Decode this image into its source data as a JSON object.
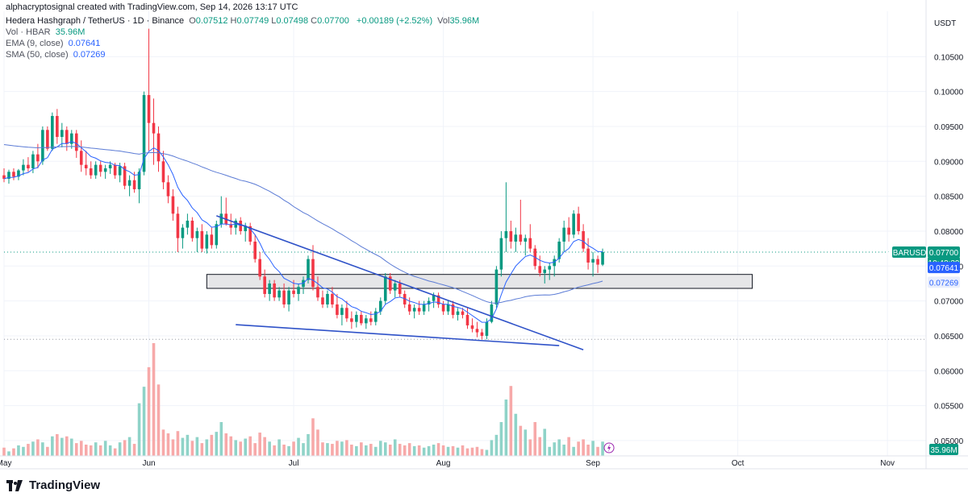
{
  "header": {
    "caption": "alphacryptosignal created with TradingView.com, Sep 14, 2026 13:17 UTC",
    "symbol_line": "Hedera Hashgraph / TetherUS · 1D · Binance",
    "ohlc": [
      {
        "k": "O",
        "v": "0.07512"
      },
      {
        "k": "H",
        "v": "0.07749"
      },
      {
        "k": "L",
        "v": "0.07498"
      },
      {
        "k": "C",
        "v": "0.07700"
      }
    ],
    "change": "+0.00189 (+2.52%)",
    "vol_label": "Vol",
    "vol_value": "35.96M",
    "vol_line_label": "Vol · HBAR",
    "vol_line_value": "35.96M",
    "ema_label": "EMA (9, close)",
    "ema_value": "0.07641",
    "sma_label": "SMA (50, close)",
    "sma_value": "0.07269"
  },
  "brand": "TradingView",
  "colors": {
    "up": "#089981",
    "down": "#f23645",
    "vol_up": "#8fd3c8",
    "vol_down": "#f7a9a9",
    "ema": "#2962ff",
    "sma": "#5b7bd5",
    "trendline": "#2f52c8",
    "grid": "#f0f3fa"
  },
  "chart_data": {
    "type": "candlestick",
    "currency": "USDT",
    "symbol_tag": "HBARUSDT",
    "last_price": "0.07700",
    "countdown": "10:42:39",
    "ema_tag": "0.07641",
    "sma_tag": "0.07269",
    "volume_tag": "35.96M",
    "y_ticks": [
      "0.10500",
      "0.10000",
      "0.09500",
      "0.09000",
      "0.08500",
      "0.08000",
      "0.07500",
      "0.07000",
      "0.06500",
      "0.06000",
      "0.05500",
      "0.05000"
    ],
    "ylim": [
      0.0478,
      0.1115
    ],
    "x_ticks": [
      {
        "label": "May",
        "t": 0
      },
      {
        "label": "Jun",
        "t": 30
      },
      {
        "label": "Jul",
        "t": 60
      },
      {
        "label": "Aug",
        "t": 91
      },
      {
        "label": "Sep",
        "t": 122
      },
      {
        "label": "Oct",
        "t": 152
      },
      {
        "label": "Nov",
        "t": 183
      }
    ],
    "x_range": [
      0,
      191
    ],
    "candles": [
      [
        0.088,
        0.089,
        0.087,
        0.0875
      ],
      [
        0.0875,
        0.0888,
        0.0868,
        0.0885
      ],
      [
        0.0885,
        0.089,
        0.0873,
        0.0878
      ],
      [
        0.0878,
        0.0889,
        0.0873,
        0.0887
      ],
      [
        0.0887,
        0.0903,
        0.088,
        0.0895
      ],
      [
        0.0895,
        0.0906,
        0.0885,
        0.089
      ],
      [
        0.089,
        0.0915,
        0.0883,
        0.091
      ],
      [
        0.091,
        0.0925,
        0.089,
        0.09
      ],
      [
        0.09,
        0.095,
        0.0895,
        0.0945
      ],
      [
        0.0945,
        0.095,
        0.0915,
        0.0918
      ],
      [
        0.0918,
        0.097,
        0.0915,
        0.0965
      ],
      [
        0.0965,
        0.0975,
        0.0925,
        0.0935
      ],
      [
        0.0935,
        0.0955,
        0.092,
        0.0945
      ],
      [
        0.0945,
        0.095,
        0.0915,
        0.0925
      ],
      [
        0.0925,
        0.0945,
        0.0918,
        0.094
      ],
      [
        0.094,
        0.0945,
        0.0905,
        0.0915
      ],
      [
        0.0915,
        0.093,
        0.0885,
        0.0895
      ],
      [
        0.0895,
        0.0915,
        0.088,
        0.089
      ],
      [
        0.089,
        0.09,
        0.0875,
        0.088
      ],
      [
        0.088,
        0.09,
        0.0875,
        0.0895
      ],
      [
        0.0895,
        0.09,
        0.0878,
        0.0885
      ],
      [
        0.0885,
        0.0895,
        0.0875,
        0.089
      ],
      [
        0.089,
        0.09,
        0.0882,
        0.0895
      ],
      [
        0.0895,
        0.0898,
        0.0875,
        0.088
      ],
      [
        0.088,
        0.0898,
        0.087,
        0.0893
      ],
      [
        0.0893,
        0.0898,
        0.086,
        0.0865
      ],
      [
        0.0865,
        0.088,
        0.085,
        0.0873
      ],
      [
        0.0873,
        0.0885,
        0.0855,
        0.086
      ],
      [
        0.086,
        0.089,
        0.084,
        0.0885
      ],
      [
        0.0885,
        0.1,
        0.088,
        0.0995
      ],
      [
        0.0995,
        0.109,
        0.0915,
        0.0955
      ],
      [
        0.0955,
        0.099,
        0.0895,
        0.094
      ],
      [
        0.094,
        0.095,
        0.0885,
        0.09
      ],
      [
        0.09,
        0.0915,
        0.086,
        0.087
      ],
      [
        0.087,
        0.088,
        0.084,
        0.085
      ],
      [
        0.085,
        0.086,
        0.0815,
        0.0825
      ],
      [
        0.0825,
        0.0835,
        0.077,
        0.079
      ],
      [
        0.079,
        0.081,
        0.0775,
        0.0805
      ],
      [
        0.0805,
        0.0825,
        0.0795,
        0.0815
      ],
      [
        0.0815,
        0.082,
        0.0785,
        0.079
      ],
      [
        0.079,
        0.0805,
        0.077,
        0.08
      ],
      [
        0.08,
        0.081,
        0.077,
        0.0775
      ],
      [
        0.0775,
        0.08,
        0.0768,
        0.0795
      ],
      [
        0.0795,
        0.0805,
        0.0775,
        0.078
      ],
      [
        0.078,
        0.0815,
        0.0775,
        0.081
      ],
      [
        0.081,
        0.085,
        0.0805,
        0.0825
      ],
      [
        0.0825,
        0.0848,
        0.0808,
        0.081
      ],
      [
        0.081,
        0.0825,
        0.0795,
        0.0805
      ],
      [
        0.0805,
        0.0818,
        0.0795,
        0.0815
      ],
      [
        0.0815,
        0.082,
        0.0795,
        0.08
      ],
      [
        0.08,
        0.0812,
        0.0785,
        0.0807
      ],
      [
        0.0807,
        0.0812,
        0.078,
        0.0785
      ],
      [
        0.0785,
        0.0795,
        0.0755,
        0.076
      ],
      [
        0.076,
        0.077,
        0.073,
        0.0735
      ],
      [
        0.0735,
        0.0745,
        0.0705,
        0.071
      ],
      [
        0.071,
        0.073,
        0.07,
        0.0725
      ],
      [
        0.0725,
        0.073,
        0.07,
        0.0705
      ],
      [
        0.0705,
        0.072,
        0.07,
        0.0715
      ],
      [
        0.0715,
        0.0725,
        0.069,
        0.0695
      ],
      [
        0.0695,
        0.072,
        0.0685,
        0.0715
      ],
      [
        0.0715,
        0.073,
        0.0705,
        0.071
      ],
      [
        0.071,
        0.0725,
        0.07,
        0.072
      ],
      [
        0.072,
        0.0735,
        0.071,
        0.073
      ],
      [
        0.073,
        0.0765,
        0.0725,
        0.076
      ],
      [
        0.076,
        0.078,
        0.0715,
        0.072
      ],
      [
        0.072,
        0.0735,
        0.07,
        0.0705
      ],
      [
        0.0705,
        0.0715,
        0.069,
        0.0695
      ],
      [
        0.0695,
        0.0715,
        0.069,
        0.071
      ],
      [
        0.071,
        0.072,
        0.069,
        0.0695
      ],
      [
        0.0695,
        0.071,
        0.0675,
        0.068
      ],
      [
        0.068,
        0.0695,
        0.0665,
        0.069
      ],
      [
        0.069,
        0.07,
        0.067,
        0.0675
      ],
      [
        0.0675,
        0.0685,
        0.066,
        0.067
      ],
      [
        0.067,
        0.0685,
        0.0662,
        0.068
      ],
      [
        0.068,
        0.0685,
        0.0665,
        0.0668
      ],
      [
        0.0668,
        0.068,
        0.066,
        0.0675
      ],
      [
        0.0675,
        0.0685,
        0.0665,
        0.067
      ],
      [
        0.067,
        0.069,
        0.0665,
        0.0685
      ],
      [
        0.0685,
        0.0705,
        0.068,
        0.07
      ],
      [
        0.07,
        0.074,
        0.0695,
        0.0735
      ],
      [
        0.0735,
        0.074,
        0.071,
        0.0715
      ],
      [
        0.0715,
        0.073,
        0.0705,
        0.0725
      ],
      [
        0.0725,
        0.073,
        0.0705,
        0.071
      ],
      [
        0.071,
        0.0715,
        0.069,
        0.0695
      ],
      [
        0.0695,
        0.0705,
        0.068,
        0.0685
      ],
      [
        0.0685,
        0.0695,
        0.0675,
        0.069
      ],
      [
        0.069,
        0.07,
        0.068,
        0.0685
      ],
      [
        0.0685,
        0.07,
        0.068,
        0.0695
      ],
      [
        0.0695,
        0.0705,
        0.0685,
        0.07
      ],
      [
        0.07,
        0.0712,
        0.069,
        0.0708
      ],
      [
        0.0708,
        0.0712,
        0.069,
        0.0695
      ],
      [
        0.0695,
        0.07,
        0.068,
        0.0685
      ],
      [
        0.0685,
        0.07,
        0.068,
        0.0695
      ],
      [
        0.0695,
        0.07,
        0.0675,
        0.068
      ],
      [
        0.068,
        0.069,
        0.0672,
        0.0685
      ],
      [
        0.0685,
        0.069,
        0.0675,
        0.068
      ],
      [
        0.068,
        0.069,
        0.066,
        0.0665
      ],
      [
        0.0665,
        0.0675,
        0.0655,
        0.066
      ],
      [
        0.066,
        0.067,
        0.0648,
        0.0655
      ],
      [
        0.0655,
        0.066,
        0.0645,
        0.065
      ],
      [
        0.065,
        0.0675,
        0.0645,
        0.067
      ],
      [
        0.067,
        0.07,
        0.0668,
        0.0695
      ],
      [
        0.0695,
        0.075,
        0.069,
        0.0745
      ],
      [
        0.0745,
        0.08,
        0.0735,
        0.079
      ],
      [
        0.079,
        0.087,
        0.077,
        0.08
      ],
      [
        0.08,
        0.0815,
        0.0775,
        0.0785
      ],
      [
        0.0785,
        0.0805,
        0.077,
        0.0795
      ],
      [
        0.0795,
        0.0845,
        0.078,
        0.0785
      ],
      [
        0.0785,
        0.0795,
        0.0765,
        0.079
      ],
      [
        0.079,
        0.081,
        0.077,
        0.0775
      ],
      [
        0.0775,
        0.078,
        0.0745,
        0.075
      ],
      [
        0.075,
        0.0765,
        0.0735,
        0.074
      ],
      [
        0.074,
        0.075,
        0.0725,
        0.0745
      ],
      [
        0.0745,
        0.0755,
        0.073,
        0.075
      ],
      [
        0.075,
        0.0765,
        0.0735,
        0.076
      ],
      [
        0.076,
        0.079,
        0.0755,
        0.0785
      ],
      [
        0.0785,
        0.0815,
        0.077,
        0.0805
      ],
      [
        0.0805,
        0.082,
        0.0785,
        0.0795
      ],
      [
        0.0795,
        0.083,
        0.079,
        0.0825
      ],
      [
        0.0825,
        0.0835,
        0.0795,
        0.08
      ],
      [
        0.08,
        0.081,
        0.077,
        0.0775
      ],
      [
        0.0775,
        0.079,
        0.0745,
        0.0755
      ],
      [
        0.0755,
        0.077,
        0.0735,
        0.076
      ],
      [
        0.076,
        0.0765,
        0.074,
        0.0752
      ],
      [
        0.0752,
        0.0775,
        0.075,
        0.077
      ]
    ],
    "volume": [
      11,
      6,
      10,
      14,
      12,
      16,
      19,
      22,
      18,
      12,
      26,
      29,
      24,
      26,
      23,
      17,
      20,
      15,
      14,
      18,
      14,
      20,
      14,
      10,
      18,
      21,
      25,
      16,
      70,
      92,
      118,
      150,
      95,
      35,
      30,
      22,
      33,
      24,
      28,
      20,
      25,
      17,
      22,
      28,
      32,
      45,
      30,
      26,
      21,
      19,
      23,
      26,
      17,
      31,
      25,
      19,
      14,
      22,
      15,
      13,
      19,
      24,
      17,
      29,
      50,
      35,
      18,
      17,
      16,
      20,
      19,
      21,
      15,
      13,
      18,
      14,
      16,
      12,
      20,
      18,
      15,
      22,
      16,
      14,
      17,
      13,
      14,
      11,
      13,
      15,
      17,
      14,
      12,
      13,
      11,
      14,
      10,
      11,
      12,
      9,
      8,
      21,
      28,
      45,
      75,
      93,
      56,
      40,
      35,
      22,
      45,
      25,
      36,
      12,
      18,
      22,
      15,
      25,
      12,
      19,
      22,
      15,
      20,
      12,
      19,
      14,
      6,
      10
    ],
    "trendlines": [
      {
        "from": [
          44,
          0.082
        ],
        "to": [
          116,
          0.0648
        ]
      },
      {
        "from": [
          48,
          0.0662
        ],
        "to": [
          109,
          0.064
        ]
      },
      {
        "from": [
          119,
          0.0623
        ],
        "to": [
          119,
          0.0623
        ]
      }
    ],
    "upper_trendline": {
      "from": [
        44,
        0.0822
      ],
      "to": [
        120,
        0.063
      ]
    },
    "lower_trendline": {
      "from": [
        48,
        0.0666
      ],
      "to": [
        115,
        0.0636
      ]
    },
    "support_zone": {
      "from_t": 42,
      "to_t": 155,
      "top": 0.0738,
      "bottom": 0.0718
    },
    "dotted_lines": [
      0.077,
      0.0645
    ]
  }
}
